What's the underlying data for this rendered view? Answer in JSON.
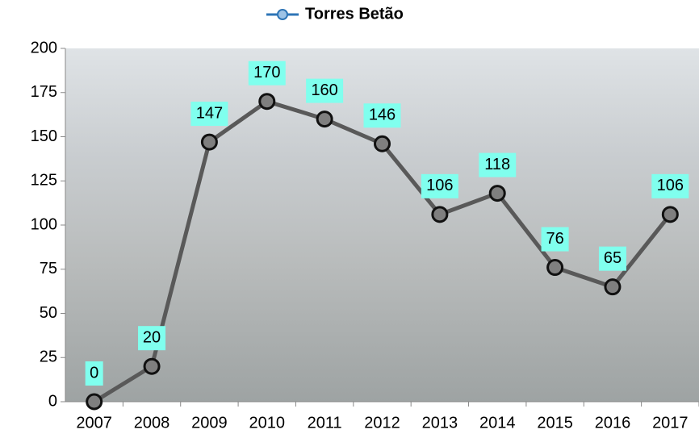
{
  "chart_data": {
    "type": "line",
    "categories": [
      "2007",
      "2008",
      "2009",
      "2010",
      "2011",
      "2012",
      "2013",
      "2014",
      "2015",
      "2016",
      "2017"
    ],
    "series": [
      {
        "name": "Torres Betão",
        "color": "#595959",
        "marker_color": "#2e75b6",
        "values": [
          0,
          20,
          147,
          170,
          160,
          146,
          106,
          118,
          76,
          65,
          106
        ]
      }
    ],
    "ylim": [
      0,
      200
    ],
    "yticks": [
      0,
      25,
      50,
      75,
      100,
      125,
      150,
      175,
      200
    ],
    "label_color": "#80ffee",
    "legend": "top"
  }
}
